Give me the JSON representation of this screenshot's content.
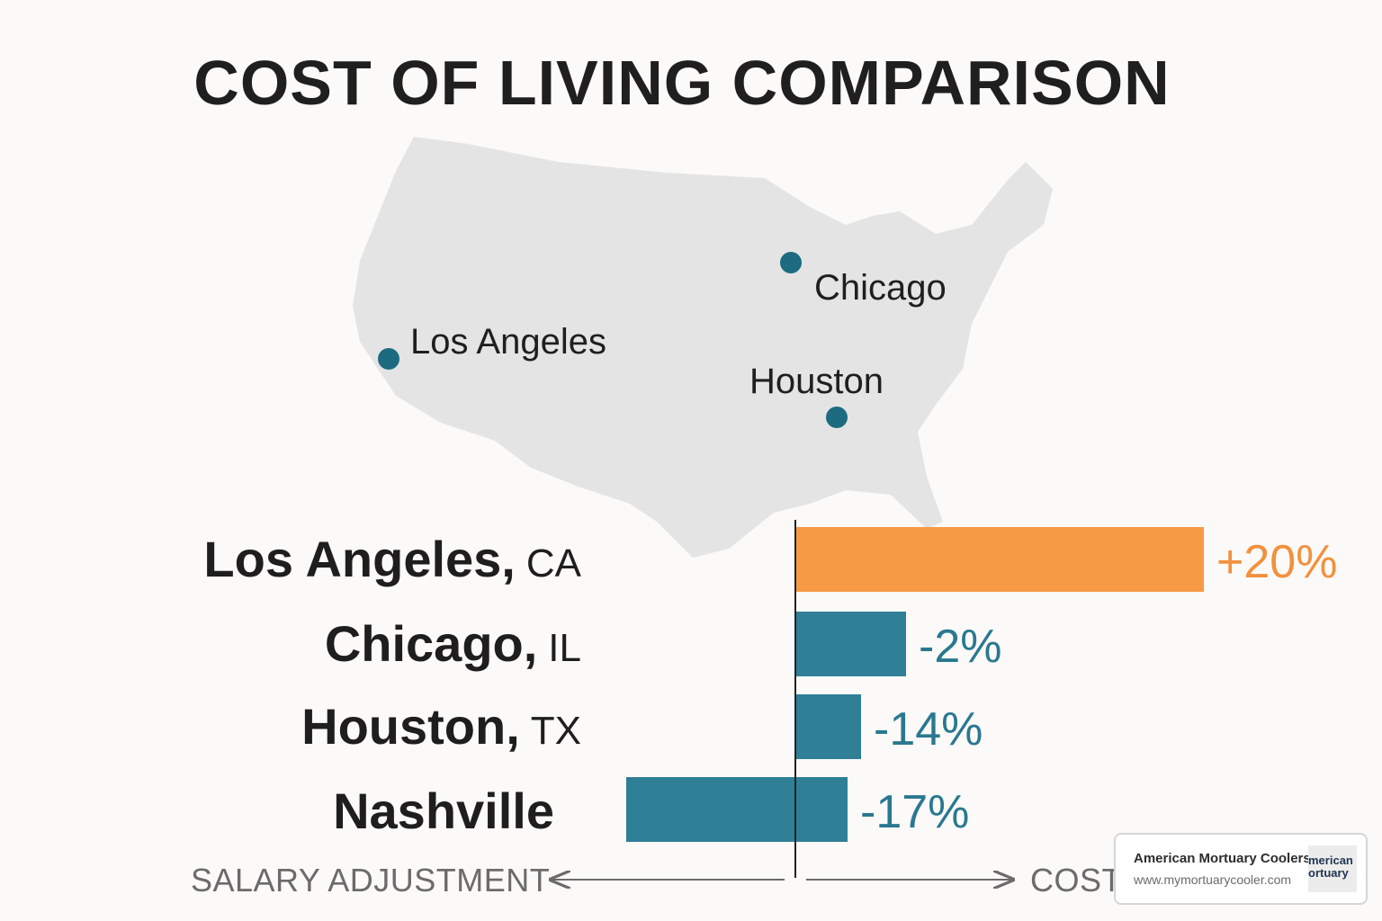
{
  "title": "COST OF LIVING COMPARISON",
  "map": {
    "cities": [
      {
        "name": "Los Angeles",
        "icon": "location-dot"
      },
      {
        "name": "Chicago",
        "icon": "location-dot"
      },
      {
        "name": "Houston",
        "icon": "location-dot"
      }
    ],
    "dot_color": "#1d6b80",
    "land_color": "#e4e4e4"
  },
  "chart_data": {
    "type": "bar",
    "orientation": "horizontal",
    "title": "",
    "categories": [
      {
        "city": "Los Angeles,",
        "state": "CA"
      },
      {
        "city": "Chicago,",
        "state": "IL"
      },
      {
        "city": "Houston,",
        "state": "TX"
      },
      {
        "city": "Nashville",
        "state": ""
      }
    ],
    "values": [
      20,
      -2,
      -14,
      -17
    ],
    "value_labels": [
      "+20%",
      "-2%",
      "-14%",
      "-17%"
    ],
    "colors": [
      "#f79a45",
      "#2f7f96",
      "#2f7f96",
      "#2f7f96"
    ],
    "label_colors": [
      "#f2913e",
      "#2a7890",
      "#2a7890",
      "#2a7890"
    ],
    "xlabel_left": "SALARY ADJUSTMENT",
    "xlabel_right": "COST",
    "grid": false
  },
  "badge": {
    "name": "American Mortuary Coolers",
    "url": "www.mymortuarycooler.com",
    "logo_text_1": "merican",
    "logo_text_2": "ortuary"
  }
}
